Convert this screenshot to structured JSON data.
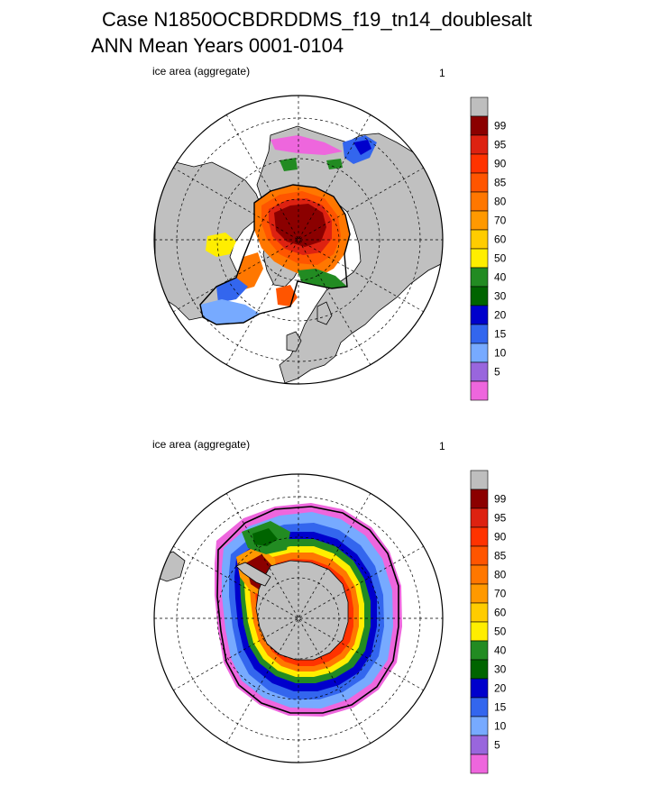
{
  "header": {
    "title_line_1": "Case N1850OCBDRDDMS_f19_tn14_doublesalt",
    "title_line_2": "ANN Mean     Years 0001-0104"
  },
  "panels": [
    {
      "hemisphere": "north",
      "variable_label": "ice area  (aggregate)",
      "panel_number": "1"
    },
    {
      "hemisphere": "south",
      "variable_label": "ice area  (aggregate)",
      "panel_number": "1"
    }
  ],
  "legend": {
    "bins": [
      {
        "label": "",
        "color": "#bebebe"
      },
      {
        "label": "99",
        "color": "#8b0000"
      },
      {
        "label": "95",
        "color": "#dd2211"
      },
      {
        "label": "90",
        "color": "#ff3300"
      },
      {
        "label": "85",
        "color": "#ff5500"
      },
      {
        "label": "80",
        "color": "#ff7700"
      },
      {
        "label": "70",
        "color": "#ff9900"
      },
      {
        "label": "60",
        "color": "#ffcc00"
      },
      {
        "label": "50",
        "color": "#ffee00"
      },
      {
        "label": "40",
        "color": "#228b22"
      },
      {
        "label": "30",
        "color": "#006400"
      },
      {
        "label": "20",
        "color": "#0000cc"
      },
      {
        "label": "15",
        "color": "#3366ee"
      },
      {
        "label": "10",
        "color": "#77aaff"
      },
      {
        "label": "5",
        "color": "#9966dd"
      },
      {
        "label": "",
        "color": "#ee66dd"
      }
    ]
  },
  "colors": {
    "land": "#c0c0c0",
    "ocean": "#ffffff",
    "coastline": "#000000",
    "ice_edge_contour": "#000000"
  }
}
